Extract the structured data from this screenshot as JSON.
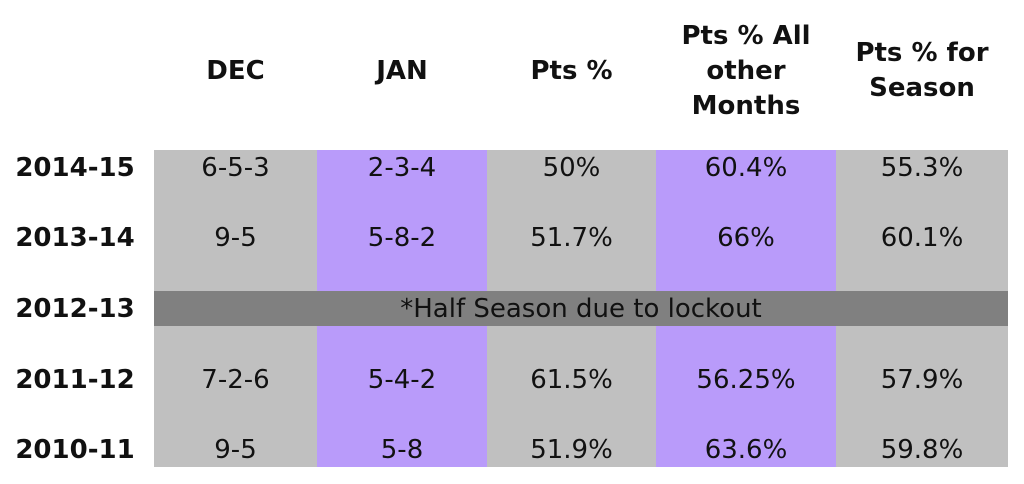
{
  "colors": {
    "gray": "#c0c0c0",
    "purple": "#b99bfa",
    "banner": "#808080",
    "text": "#111111"
  },
  "chart_data": {
    "type": "table",
    "columns": [
      "DEC",
      "JAN",
      "Pts %",
      "Pts % All other Months",
      "Pts % for Season"
    ],
    "header_lines": [
      [
        "DEC"
      ],
      [
        "JAN"
      ],
      [
        "Pts %"
      ],
      [
        "Pts % All",
        "other",
        "Months"
      ],
      [
        "Pts % for",
        "Season"
      ]
    ],
    "rows": [
      {
        "season": "2014-15",
        "cells": [
          "6-5-3",
          "2-3-4",
          "50%",
          "60.4%",
          "55.3%"
        ]
      },
      {
        "season": "2013-14",
        "cells": [
          "9-5",
          "5-8-2",
          "51.7%",
          "66%",
          "60.1%"
        ]
      },
      {
        "season": "2012-13",
        "note": "*Half Season due to lockout"
      },
      {
        "season": "2011-12",
        "cells": [
          "7-2-6",
          "5-4-2",
          "61.5%",
          "56.25%",
          "57.9%"
        ]
      },
      {
        "season": "2010-11",
        "cells": [
          "9-5",
          "5-8",
          "51.9%",
          "63.6%",
          "59.8%"
        ]
      }
    ]
  }
}
